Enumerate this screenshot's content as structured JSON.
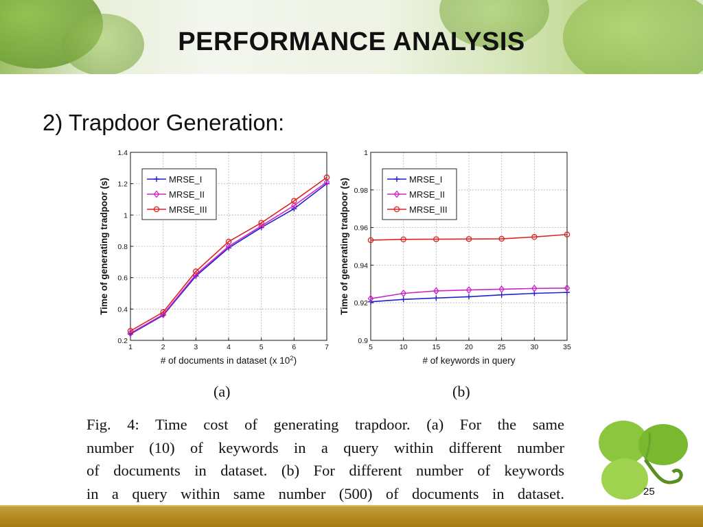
{
  "slide": {
    "title": "PERFORMANCE ANALYSIS",
    "subtitle": "2) Trapdoor Generation:",
    "page_number": "25",
    "caption_lines": [
      "Fig. 4: Time cost of generating trapdoor. (a) For the same",
      "number (10) of keywords in a query within different number",
      "of documents in dataset. (b) For different number of keywords",
      "in a query within same number (500) of documents in dataset."
    ],
    "panel_labels": [
      "(a)",
      "(b)"
    ]
  },
  "colors": {
    "MRSE_I": "#1f1fcc",
    "MRSE_II": "#cc22cc",
    "MRSE_III": "#dd2222",
    "footer": "#b58a1f"
  },
  "chart_data": [
    {
      "type": "line",
      "title": "",
      "xlabel": "# of documents in dataset (x 10",
      "xlabel_sup": "2",
      "xlabel_tail": ")",
      "ylabel": "Time of generating tradpoor (s)",
      "x": [
        1,
        2,
        3,
        4,
        5,
        6,
        7
      ],
      "xlim": [
        1,
        7
      ],
      "ylim": [
        0.2,
        1.4
      ],
      "xticks": [
        "1",
        "2",
        "3",
        "4",
        "5",
        "6",
        "7"
      ],
      "yticks": [
        "0.2",
        "0.4",
        "0.6",
        "0.8",
        "1",
        "1.2",
        "1.4"
      ],
      "ytick_values": [
        0.2,
        0.4,
        0.6,
        0.8,
        1.0,
        1.2,
        1.4
      ],
      "grid": true,
      "legend": "top-left",
      "series": [
        {
          "name": "MRSE_I",
          "marker": "plus",
          "values": [
            0.24,
            0.36,
            0.61,
            0.79,
            0.92,
            1.04,
            1.2
          ]
        },
        {
          "name": "MRSE_II",
          "marker": "diamond",
          "values": [
            0.245,
            0.365,
            0.62,
            0.8,
            0.93,
            1.06,
            1.21
          ]
        },
        {
          "name": "MRSE_III",
          "marker": "circle",
          "values": [
            0.26,
            0.38,
            0.64,
            0.83,
            0.95,
            1.09,
            1.24
          ]
        }
      ]
    },
    {
      "type": "line",
      "title": "",
      "xlabel": "# of keywords in query",
      "ylabel": "Time of generating tradpoor (s)",
      "x": [
        5,
        10,
        15,
        20,
        25,
        30,
        35
      ],
      "xlim": [
        5,
        35
      ],
      "ylim": [
        0.9,
        1.0
      ],
      "xticks": [
        "5",
        "10",
        "15",
        "20",
        "25",
        "30",
        "35"
      ],
      "yticks": [
        "0.9",
        "0.92",
        "0.94",
        "0.96",
        "0.98",
        "1"
      ],
      "ytick_values": [
        0.9,
        0.92,
        0.94,
        0.96,
        0.98,
        1.0
      ],
      "grid": true,
      "legend": "top-left",
      "series": [
        {
          "name": "MRSE_I",
          "marker": "plus",
          "values": [
            0.9205,
            0.9218,
            0.9225,
            0.9232,
            0.9242,
            0.925,
            0.9255
          ]
        },
        {
          "name": "MRSE_II",
          "marker": "diamond",
          "values": [
            0.9222,
            0.925,
            0.9263,
            0.9268,
            0.9272,
            0.9276,
            0.9278
          ]
        },
        {
          "name": "MRSE_III",
          "marker": "circle",
          "values": [
            0.9533,
            0.9537,
            0.9538,
            0.9539,
            0.954,
            0.955,
            0.9563
          ]
        }
      ]
    }
  ]
}
